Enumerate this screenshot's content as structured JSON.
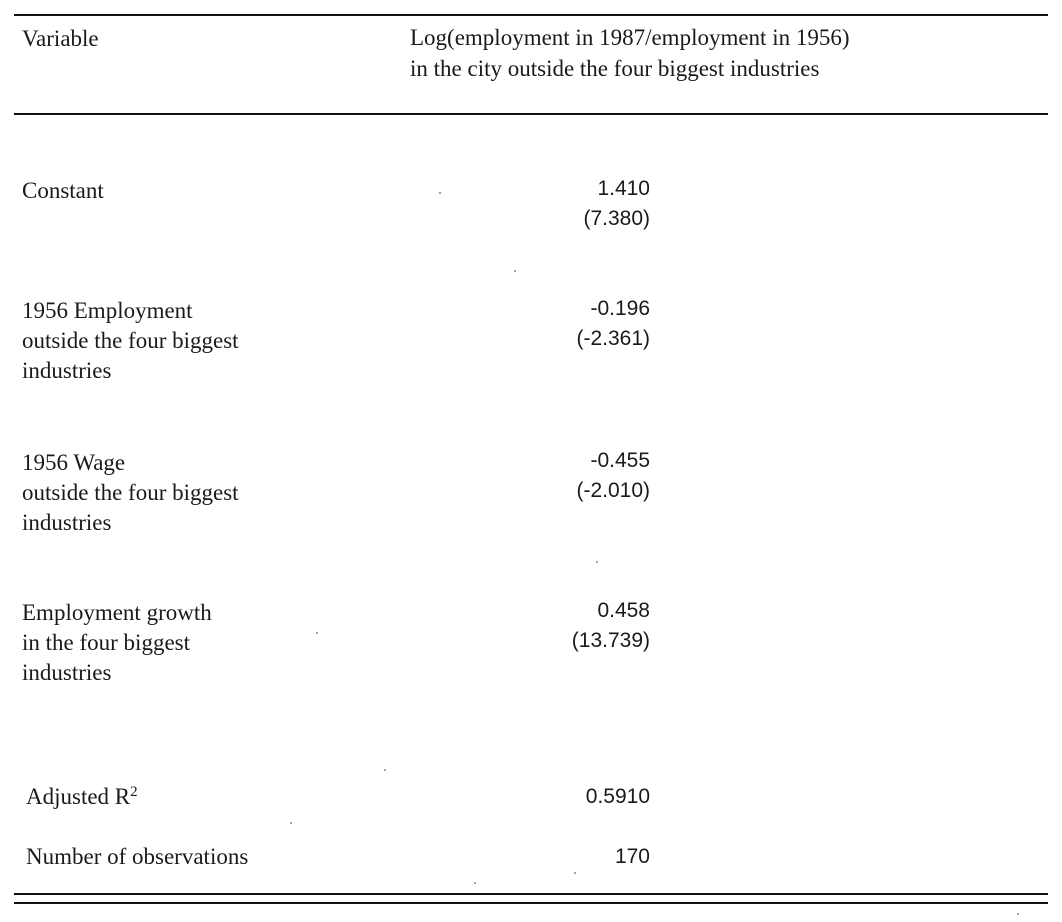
{
  "table": {
    "header": {
      "variable": "Variable",
      "dependent_line1": "Log(employment in 1987/employment in 1956)",
      "dependent_line2": "in the city outside the four biggest industries"
    },
    "rows": [
      {
        "label_lines": [
          "Constant"
        ],
        "coefficient": "1.410",
        "t_stat": "(7.380)"
      },
      {
        "label_lines": [
          "1956 Employment",
          "outside the four biggest",
          "industries"
        ],
        "coefficient": "-0.196",
        "t_stat": "(-2.361)"
      },
      {
        "label_lines": [
          "1956 Wage",
          "outside the four biggest",
          "industries"
        ],
        "coefficient": "-0.455",
        "t_stat": "(-2.010)"
      },
      {
        "label_lines": [
          "Employment growth",
          "in the four biggest",
          "industries"
        ],
        "coefficient": "0.458",
        "t_stat": "(13.739)"
      }
    ],
    "stats": {
      "adjusted_r2_label": "Adjusted R",
      "adjusted_r2_sup": "2",
      "adjusted_r2_value": "0.5910",
      "n_obs_label": "Number of observations",
      "n_obs_value": "170"
    }
  }
}
